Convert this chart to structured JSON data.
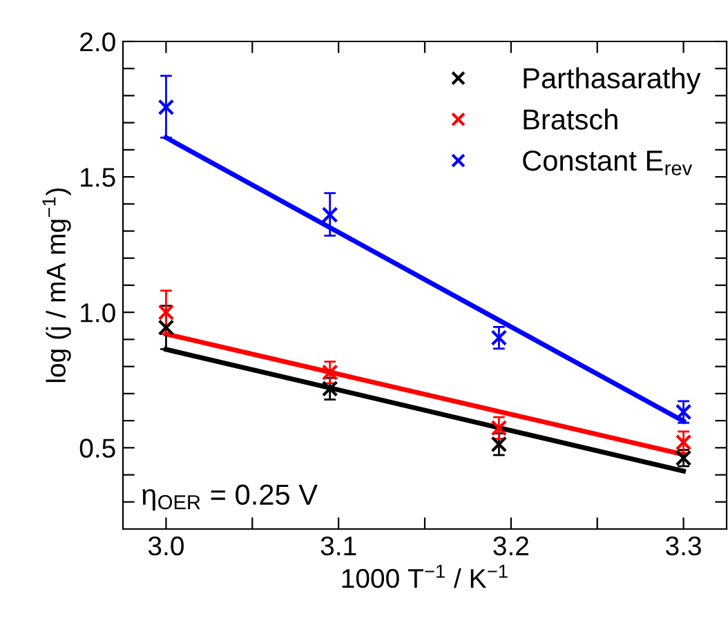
{
  "chart_data": {
    "type": "scatter",
    "xlabel": "1000 T$^{−1}$ / K$^{−1}$",
    "ylabel": "log (j / mA mg$^{−1}$)",
    "x": [
      3.0,
      3.095,
      3.193,
      3.3
    ],
    "series": [
      {
        "name": "Parthasarathy",
        "color": "#000000",
        "values": [
          0.944,
          0.718,
          0.513,
          0.462
        ],
        "errors": [
          0.08,
          0.04,
          0.04,
          0.03
        ]
      },
      {
        "name": "Bratsch",
        "color": "#ff0000",
        "values": [
          1.0,
          0.778,
          0.573,
          0.52
        ],
        "errors": [
          0.08,
          0.04,
          0.04,
          0.04
        ]
      },
      {
        "name": "Constant E$_{rev}$",
        "color": "#0000ff",
        "values": [
          1.757,
          1.36,
          0.906,
          0.632
        ],
        "errors": [
          [
            1.645,
            1.873
          ],
          [
            1.283,
            1.44
          ],
          0.04,
          0.04
        ]
      },
      {
        "type": "line",
        "color": "#000000",
        "marker": "none",
        "values": [
          0.863,
          0.721,
          0.574,
          0.414
        ]
      },
      {
        "type": "line",
        "color": "#ff0000",
        "marker": "none",
        "values": [
          0.92,
          0.779,
          0.634,
          0.475
        ]
      },
      {
        "type": "line",
        "color": "#0000ff",
        "marker": "none",
        "values": [
          1.645,
          1.313,
          0.971,
          0.598
        ]
      }
    ],
    "marker": "cross",
    "xlim": [
      2.975,
      3.325
    ],
    "ylim": [
      0.2,
      2.0
    ],
    "xticks": [
      {
        "value": 3.0,
        "label": "3.0"
      },
      {
        "value": 3.05,
        "label": null
      },
      3.1,
      {
        "value": 3.15,
        "label": null
      },
      3.2,
      {
        "value": 3.25,
        "label": null
      },
      3.3
    ],
    "yticks": [
      {
        "value": 0.3,
        "label": null
      },
      {
        "value": 0.4,
        "label": null
      },
      {
        "value": 0.5,
        "label": "0.5"
      },
      {
        "value": 0.6,
        "label": null
      },
      {
        "value": 0.7,
        "label": null
      },
      {
        "value": 0.8,
        "label": null
      },
      {
        "value": 0.9,
        "label": null
      },
      {
        "value": 1.0,
        "label": "1.0"
      },
      {
        "value": 1.1,
        "label": null
      },
      {
        "value": 1.2,
        "label": null
      },
      {
        "value": 1.3,
        "label": null
      },
      {
        "value": 1.4,
        "label": null
      },
      {
        "value": 1.5,
        "label": "1.5"
      },
      {
        "value": 1.6,
        "label": null
      },
      {
        "value": 1.7,
        "label": null
      },
      {
        "value": 1.8,
        "label": null
      },
      {
        "value": 1.9,
        "label": null
      },
      {
        "value": 2.0,
        "label": "2.0"
      }
    ],
    "annotations": [
      "η$_{OER}$ = 0.25 V"
    ],
    "legend": "top right",
    "grid": false
  }
}
